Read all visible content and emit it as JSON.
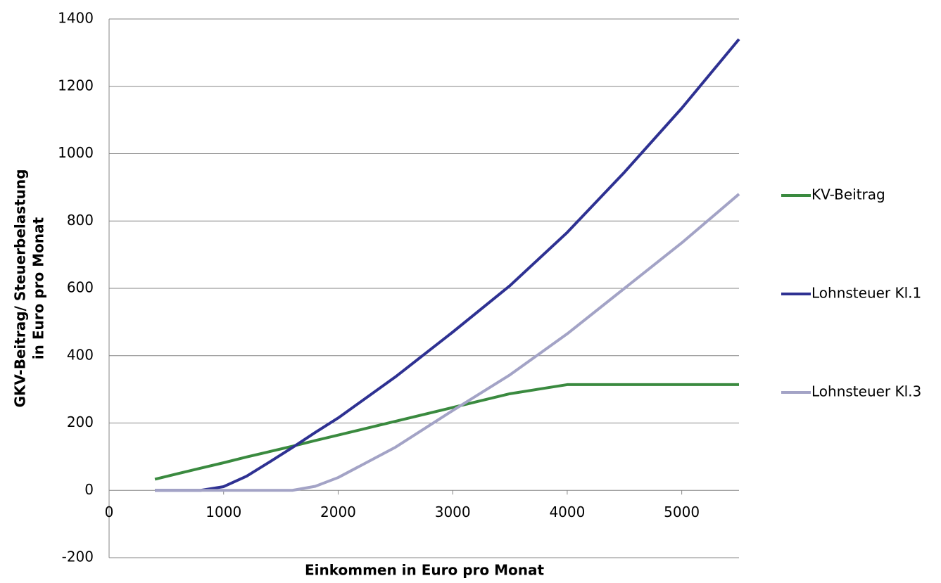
{
  "chart_data": {
    "type": "line",
    "x_label": "Einkommen in Euro pro Monat",
    "y_label": [
      "GKV-Beitrag/ Steuerbelastung",
      "in Euro pro Monat"
    ],
    "x": [
      400,
      800,
      1000,
      1200,
      1400,
      1600,
      1800,
      2000,
      2500,
      3000,
      3500,
      4000,
      4500,
      5000,
      5500
    ],
    "series": [
      {
        "name": "KV-Beitrag",
        "color": "#3a8a3f",
        "values": [
          33,
          66,
          82,
          99,
          115,
          131,
          148,
          164,
          205,
          246,
          287,
          314,
          314,
          314,
          314
        ]
      },
      {
        "name": "Lohnsteuer Kl.1",
        "color": "#2e3192",
        "values": [
          0,
          0,
          11,
          42,
          84,
          127,
          172,
          215,
          337,
          470,
          608,
          766,
          945,
          1135,
          1340
        ]
      },
      {
        "name": "Lohnsteuer Kl.3",
        "color": "#a3a3c6",
        "values": [
          0,
          0,
          0,
          0,
          0,
          0,
          12,
          38,
          128,
          237,
          343,
          465,
          600,
          735,
          880
        ]
      }
    ],
    "xlim": [
      0,
      5500
    ],
    "xticks": [
      0,
      1000,
      2000,
      3000,
      4000,
      5000
    ],
    "ylim": [
      -200,
      1400
    ],
    "yticks": [
      -200,
      0,
      200,
      400,
      600,
      800,
      1000,
      1200,
      1400
    ],
    "grid": true,
    "legend": "right"
  }
}
